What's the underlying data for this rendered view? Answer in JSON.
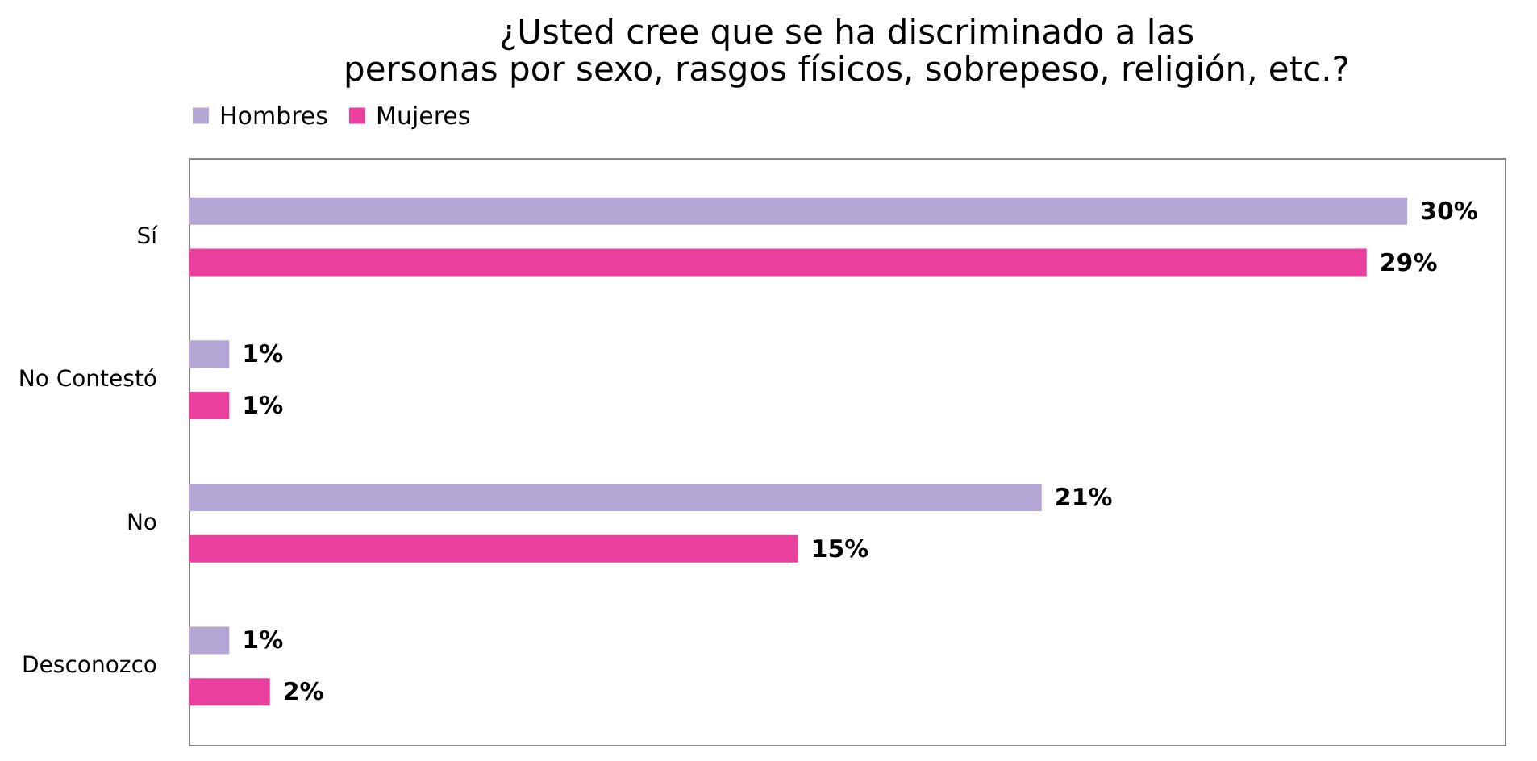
{
  "chart_data": {
    "type": "bar",
    "orientation": "horizontal",
    "title": "¿Usted  cree que se ha discriminado a las personas por sexo, rasgos físicos, sobrepeso, religión, etc.?",
    "categories": [
      "Sí",
      "No Contestó",
      "No",
      "Desconozco"
    ],
    "series": [
      {
        "name": "Hombres",
        "color": "#b4a7d6",
        "values": [
          30,
          1,
          21,
          1
        ],
        "value_labels": [
          "30%",
          "1%",
          "21%",
          "1%"
        ]
      },
      {
        "name": "Mujeres",
        "color": "#e8409c",
        "values": [
          29,
          1,
          15,
          2
        ],
        "value_labels": [
          "29%",
          "1%",
          "15%",
          "2%"
        ]
      }
    ],
    "legend": "top",
    "grid": false
  }
}
